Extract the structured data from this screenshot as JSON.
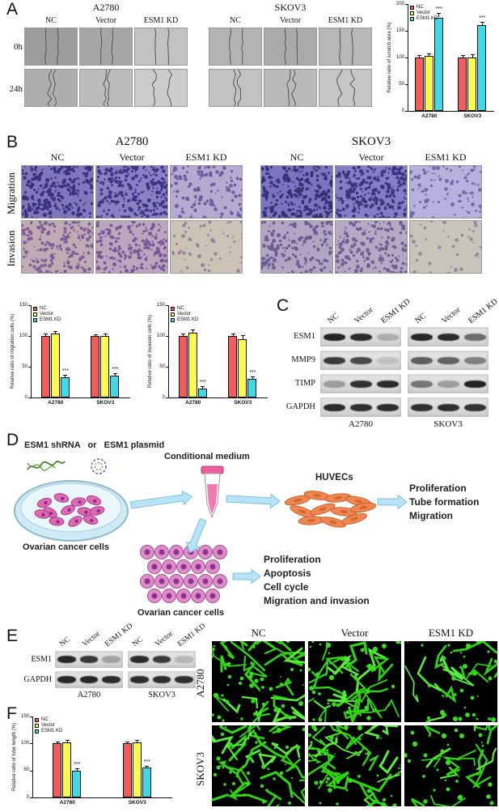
{
  "panels": {
    "A": {
      "label": "A",
      "groups": [
        "A2780",
        "SKOV3"
      ],
      "col_headers": [
        "NC",
        "Vector",
        "ESM1 KD"
      ],
      "row_labels": [
        "0h",
        "24h"
      ],
      "scratch_images": [
        {
          "bg": "#9c9c9c",
          "gap": 15,
          "wig": 1
        },
        {
          "bg": "#a6a6a6",
          "gap": 14,
          "wig": 1
        },
        {
          "bg": "#c2c2c2",
          "gap": 16,
          "wig": 1
        },
        {
          "bg": "#b3b3b3",
          "gap": 15,
          "wig": 1
        },
        {
          "bg": "#aaaaaa",
          "gap": 14,
          "wig": 1
        },
        {
          "bg": "#b8b8b8",
          "gap": 15,
          "wig": 1
        },
        {
          "bg": "#aeaeae",
          "gap": 5,
          "wig": 3
        },
        {
          "bg": "#bcbcbc",
          "gap": 6,
          "wig": 3
        },
        {
          "bg": "#cccccc",
          "gap": 18,
          "wig": 4
        },
        {
          "bg": "#c2c2c2",
          "gap": 6,
          "wig": 3
        },
        {
          "bg": "#bababa",
          "gap": 7,
          "wig": 3
        },
        {
          "bg": "#c6c6c6",
          "gap": 16,
          "wig": 4
        }
      ]
    },
    "B": {
      "label": "B",
      "groups": [
        "A2780",
        "SKOV3"
      ],
      "col_headers": [
        "NC",
        "Vector",
        "ESM1 KD"
      ],
      "row_labels": [
        "Migration",
        "Invasion"
      ],
      "transwell_images": [
        {
          "base": "#8277bd",
          "dot": "#39307e",
          "n": 260
        },
        {
          "base": "#8b80c4",
          "dot": "#3d3484",
          "n": 250
        },
        {
          "base": "#b7aad0",
          "dot": "#6a5a9e",
          "n": 120
        },
        {
          "base": "#7b74c0",
          "dot": "#343172",
          "n": 270
        },
        {
          "base": "#857dc6",
          "dot": "#3a3580",
          "n": 255
        },
        {
          "base": "#b7b2dd",
          "dot": "#6f68ab",
          "n": 90
        },
        {
          "base": "#c0abb4",
          "dot": "#7d5f96",
          "n": 190
        },
        {
          "base": "#bba6bd",
          "dot": "#74589a",
          "n": 200
        },
        {
          "base": "#cdc2b6",
          "dot": "#94839b",
          "n": 55
        },
        {
          "base": "#b2a5c2",
          "dot": "#6d5b92",
          "n": 170
        },
        {
          "base": "#b6a9c4",
          "dot": "#6f5d94",
          "n": 175
        },
        {
          "base": "#c8c4ba",
          "dot": "#8f8a96",
          "n": 35
        }
      ]
    },
    "C": {
      "label": "C",
      "lane_labels": [
        "NC",
        "Vector",
        "ESM1 KD",
        "NC",
        "Vector",
        "ESM1 KD"
      ],
      "group_labels": [
        "A2780",
        "SKOV3"
      ],
      "rows": [
        {
          "label": "ESM1",
          "bands": [
            0.92,
            0.88,
            0.22,
            0.9,
            0.88,
            0.55
          ]
        },
        {
          "label": "MMP9",
          "bands": [
            0.8,
            0.72,
            0.12,
            0.62,
            0.6,
            0.45
          ]
        },
        {
          "label": "TIMP",
          "bands": [
            0.3,
            0.85,
            0.88,
            0.5,
            0.3,
            0.92
          ]
        },
        {
          "label": "GAPDH",
          "bands": [
            0.88,
            0.86,
            0.87,
            0.85,
            0.86,
            0.84
          ]
        }
      ]
    },
    "D": {
      "label": "D",
      "treatment_text": "ESM1 shRNA   or   ESM1 plasmid",
      "dish_label": "Ovarian cancer cells",
      "medium_label": "Conditional medium",
      "huvec_label": "HUVECs",
      "huvec_outcomes": [
        "Proliferation",
        "Tube formation",
        "Migration"
      ],
      "cancer_cells_label": "Ovarian cancer cells",
      "cancer_outcomes": [
        "Proliferation",
        "Apoptosis",
        "Cell cycle",
        "Migration and invasion"
      ],
      "arrow_color": "#b7e3f6"
    },
    "E": {
      "label": "E",
      "lane_labels": [
        "NC",
        "Vector",
        "ESM1 KD",
        "NC",
        "Vector",
        "ESM1 KD"
      ],
      "group_labels": [
        "A2780",
        "SKOV3"
      ],
      "rows": [
        {
          "label": "ESM1",
          "bands": [
            0.9,
            0.82,
            0.28,
            0.88,
            0.8,
            0.18
          ]
        },
        {
          "label": "GAPDH",
          "bands": [
            0.9,
            0.9,
            0.88,
            0.87,
            0.88,
            0.86
          ]
        }
      ]
    },
    "F": {
      "label": "F"
    },
    "tube_formation": {
      "col_headers": [
        "NC",
        "Vector",
        "ESM1 KD"
      ],
      "row_labels": [
        "A2780",
        "SKOV3"
      ],
      "tube_color": "#2ed313",
      "images": [
        {
          "lines": 26,
          "blobs": 40
        },
        {
          "lines": 26,
          "blobs": 42
        },
        {
          "lines": 13,
          "blobs": 34
        },
        {
          "lines": 24,
          "blobs": 38
        },
        {
          "lines": 26,
          "blobs": 40
        },
        {
          "lines": 14,
          "blobs": 30
        }
      ]
    }
  },
  "chart_data": [
    {
      "id": "scratch",
      "type": "bar",
      "title": "",
      "ylabel": "Relative ratio of scratch area (%)",
      "xlabel": "",
      "categories": [
        "A2780",
        "SKOV3"
      ],
      "series": [
        {
          "name": "NC",
          "color": "#f25c5c",
          "values": [
            100,
            100
          ],
          "errors": [
            5,
            5
          ]
        },
        {
          "name": "Vector",
          "color": "#fbfb4f",
          "values": [
            103,
            100
          ],
          "errors": [
            5,
            6
          ]
        },
        {
          "name": "ESM1 KD",
          "color": "#3fd9e8",
          "values": [
            175,
            160
          ],
          "errors": [
            8,
            7
          ]
        }
      ],
      "ylim": [
        0,
        200
      ],
      "yticks": [
        0,
        50,
        100,
        150,
        200
      ],
      "sig": {
        "series_index": 2,
        "labels": [
          "***",
          "***"
        ]
      },
      "legend_position": "top-left"
    },
    {
      "id": "migration",
      "type": "bar",
      "title": "",
      "ylabel": "Relative ratio of migration cells (%)",
      "xlabel": "",
      "categories": [
        "A2780",
        "SKOV3"
      ],
      "series": [
        {
          "name": "NC",
          "color": "#f25c5c",
          "values": [
            100,
            100
          ],
          "errors": [
            4,
            3
          ]
        },
        {
          "name": "Vector",
          "color": "#fbfb4f",
          "values": [
            104,
            100
          ],
          "errors": [
            4,
            4
          ]
        },
        {
          "name": "ESM1 KD",
          "color": "#3fd9e8",
          "values": [
            33,
            35
          ],
          "errors": [
            4,
            4
          ]
        }
      ],
      "ylim": [
        0,
        150
      ],
      "yticks": [
        0,
        50,
        100,
        150
      ],
      "sig": {
        "series_index": 2,
        "labels": [
          "***",
          "***"
        ]
      },
      "legend_position": "top-left"
    },
    {
      "id": "invasion",
      "type": "bar",
      "title": "",
      "ylabel": "Relative ratio of invasion cells (%)",
      "xlabel": "",
      "categories": [
        "A2780",
        "SKOV3"
      ],
      "series": [
        {
          "name": "NC",
          "color": "#f25c5c",
          "values": [
            100,
            100
          ],
          "errors": [
            4,
            4
          ]
        },
        {
          "name": "Vector",
          "color": "#fbfb4f",
          "values": [
            105,
            95
          ],
          "errors": [
            5,
            6
          ]
        },
        {
          "name": "ESM1 KD",
          "color": "#3fd9e8",
          "values": [
            15,
            30
          ],
          "errors": [
            3,
            4
          ]
        }
      ],
      "ylim": [
        0,
        150
      ],
      "yticks": [
        0,
        50,
        100,
        150
      ],
      "sig": {
        "series_index": 2,
        "labels": [
          "***",
          "***"
        ]
      },
      "legend_position": "top-left"
    },
    {
      "id": "tube",
      "type": "bar",
      "title": "",
      "ylabel": "Relative ratio of tube length (%)",
      "xlabel": "",
      "categories": [
        "A2780",
        "SKOV3"
      ],
      "series": [
        {
          "name": "NC",
          "color": "#f25c5c",
          "values": [
            100,
            100
          ],
          "errors": [
            4,
            4
          ]
        },
        {
          "name": "Vector",
          "color": "#fbfb4f",
          "values": [
            102,
            102
          ],
          "errors": [
            4,
            4
          ]
        },
        {
          "name": "ESM1 KD",
          "color": "#3fd9e8",
          "values": [
            50,
            55
          ],
          "errors": [
            4,
            4
          ]
        }
      ],
      "ylim": [
        0,
        150
      ],
      "yticks": [
        0,
        50,
        100,
        150
      ],
      "sig": {
        "series_index": 2,
        "labels": [
          "***",
          "***"
        ]
      },
      "legend_position": "top-left"
    }
  ]
}
